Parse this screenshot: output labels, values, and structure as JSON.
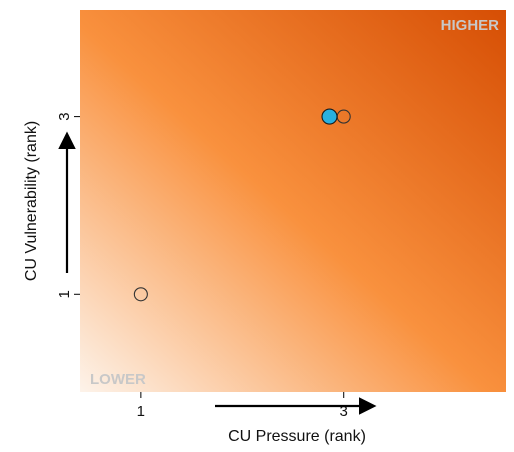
{
  "chart_data": {
    "type": "scatter",
    "title": "",
    "xlabel": "CU Pressure (rank)",
    "ylabel": "CU Vulnerability (rank)",
    "xlim": [
      0.4,
      4.6
    ],
    "ylim": [
      -0.1,
      4.2
    ],
    "x_ticks": [
      1,
      3
    ],
    "y_ticks": [
      1,
      3
    ],
    "x_tick_labels": [
      "1",
      "3"
    ],
    "y_tick_labels": [
      "1",
      "3"
    ],
    "corner_labels": {
      "high": "HIGHER",
      "low": "LOWER",
      "color": "#c8c8c8"
    },
    "gradient": {
      "low_color": "#fdf3ea",
      "mid_color": "#f9913e",
      "high_color": "#d64e04"
    },
    "series": [
      {
        "points": [
          {
            "x": 1,
            "y": 1
          },
          {
            "x": 3,
            "y": 3
          }
        ],
        "fill": "none",
        "stroke": "#333333"
      },
      {
        "points": [
          {
            "x": 2.86,
            "y": 3
          }
        ],
        "fill": "#29b0e0",
        "stroke": "#1a1a1a"
      }
    ],
    "grid": false,
    "legend": "none"
  }
}
